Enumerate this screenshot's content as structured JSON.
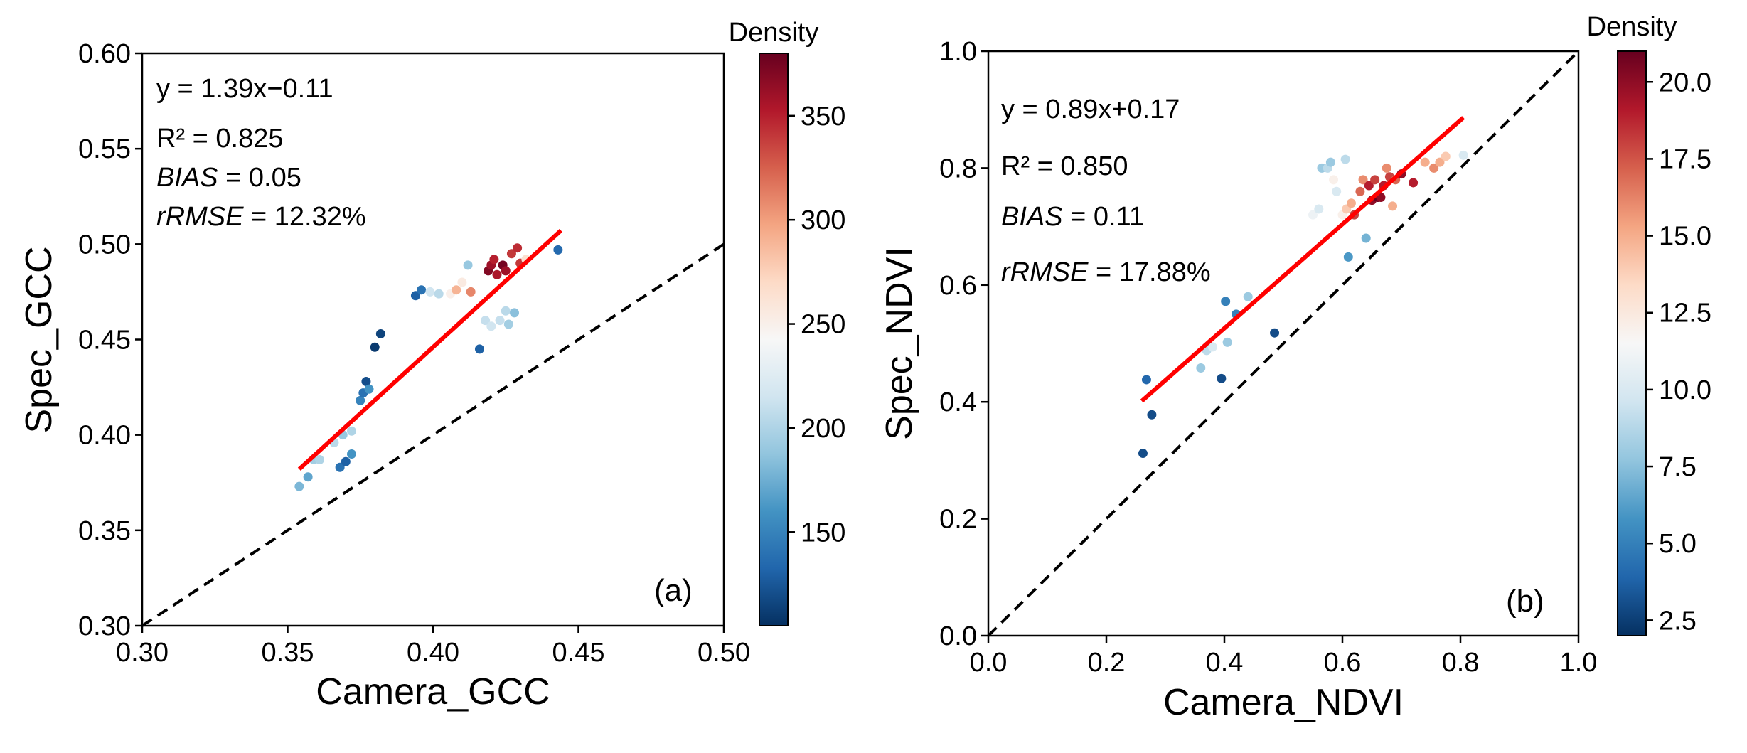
{
  "chart_data": [
    {
      "type": "scatter",
      "panel_label": "(a)",
      "xlabel": "Camera_GCC",
      "ylabel": "Spec_GCC",
      "xlim": [
        0.3,
        0.5
      ],
      "ylim": [
        0.3,
        0.6
      ],
      "xticks": [
        "0.30",
        "0.35",
        "0.40",
        "0.45",
        "0.50"
      ],
      "yticks": [
        "0.30",
        "0.35",
        "0.40",
        "0.45",
        "0.50",
        "0.55",
        "0.60"
      ],
      "equation": "y = 1.39x−0.11",
      "r2": "R² = 0.825",
      "bias_label": "BIAS",
      "bias_value": " = 0.05",
      "rrmse_label": "rRMSE",
      "rrmse_value": " = 12.32%",
      "fit_line": {
        "slope": 1.39,
        "intercept": -0.11,
        "x_range": [
          0.354,
          0.444
        ],
        "color": "#ff0000"
      },
      "identity_line": true,
      "colorbar": {
        "title": "Density",
        "min": 105,
        "max": 380,
        "ticks": [
          150,
          200,
          250,
          300,
          350
        ]
      },
      "points": [
        [
          0.354,
          0.373,
          180
        ],
        [
          0.357,
          0.378,
          170
        ],
        [
          0.359,
          0.387,
          195
        ],
        [
          0.361,
          0.387,
          200
        ],
        [
          0.366,
          0.396,
          205
        ],
        [
          0.368,
          0.383,
          140
        ],
        [
          0.369,
          0.4,
          190
        ],
        [
          0.37,
          0.386,
          130
        ],
        [
          0.372,
          0.39,
          160
        ],
        [
          0.372,
          0.402,
          200
        ],
        [
          0.375,
          0.418,
          150
        ],
        [
          0.376,
          0.422,
          140
        ],
        [
          0.377,
          0.428,
          120
        ],
        [
          0.378,
          0.424,
          160
        ],
        [
          0.38,
          0.446,
          110
        ],
        [
          0.382,
          0.453,
          115
        ],
        [
          0.394,
          0.473,
          130
        ],
        [
          0.396,
          0.476,
          140
        ],
        [
          0.399,
          0.475,
          215
        ],
        [
          0.402,
          0.474,
          205
        ],
        [
          0.406,
          0.474,
          250
        ],
        [
          0.408,
          0.476,
          290
        ],
        [
          0.41,
          0.48,
          255
        ],
        [
          0.412,
          0.489,
          190
        ],
        [
          0.413,
          0.475,
          310
        ],
        [
          0.416,
          0.445,
          130
        ],
        [
          0.418,
          0.46,
          210
        ],
        [
          0.419,
          0.486,
          370
        ],
        [
          0.42,
          0.457,
          215
        ],
        [
          0.42,
          0.489,
          360
        ],
        [
          0.421,
          0.492,
          350
        ],
        [
          0.422,
          0.484,
          355
        ],
        [
          0.423,
          0.46,
          210
        ],
        [
          0.424,
          0.489,
          375
        ],
        [
          0.425,
          0.465,
          205
        ],
        [
          0.425,
          0.486,
          360
        ],
        [
          0.426,
          0.458,
          195
        ],
        [
          0.427,
          0.495,
          340
        ],
        [
          0.428,
          0.464,
          185
        ],
        [
          0.429,
          0.498,
          345
        ],
        [
          0.43,
          0.49,
          340
        ],
        [
          0.432,
          0.492,
          265
        ],
        [
          0.443,
          0.497,
          135
        ]
      ]
    },
    {
      "type": "scatter",
      "panel_label": "(b)",
      "xlabel": "Camera_NDVI",
      "ylabel": "Spec_NDVI",
      "xlim": [
        0.0,
        1.0
      ],
      "ylim": [
        0.0,
        1.0
      ],
      "xticks": [
        "0.0",
        "0.2",
        "0.4",
        "0.6",
        "0.8",
        "1.0"
      ],
      "yticks": [
        "0.0",
        "0.2",
        "0.4",
        "0.6",
        "0.8",
        "1.0"
      ],
      "equation": "y = 0.89x+0.17",
      "r2": "R² = 0.850",
      "bias_label": "BIAS",
      "bias_value": " = 0.11",
      "rrmse_label": "rRMSE",
      "rrmse_value": " = 17.88%",
      "fit_line": {
        "slope": 0.89,
        "intercept": 0.17,
        "x_range": [
          0.26,
          0.805
        ],
        "color": "#ff0000"
      },
      "identity_line": true,
      "colorbar": {
        "title": "Density",
        "min": 2,
        "max": 21,
        "ticks": [
          2.5,
          5.0,
          7.5,
          10.0,
          12.5,
          15.0,
          17.5,
          20.0
        ]
      },
      "points": [
        [
          0.262,
          0.312,
          3
        ],
        [
          0.268,
          0.438,
          4
        ],
        [
          0.277,
          0.378,
          3
        ],
        [
          0.36,
          0.458,
          8
        ],
        [
          0.37,
          0.488,
          9
        ],
        [
          0.38,
          0.494,
          10
        ],
        [
          0.395,
          0.44,
          3
        ],
        [
          0.402,
          0.572,
          5
        ],
        [
          0.405,
          0.502,
          8
        ],
        [
          0.42,
          0.55,
          5
        ],
        [
          0.44,
          0.58,
          8
        ],
        [
          0.485,
          0.518,
          3
        ],
        [
          0.55,
          0.72,
          11
        ],
        [
          0.56,
          0.73,
          10
        ],
        [
          0.565,
          0.8,
          8
        ],
        [
          0.575,
          0.8,
          9
        ],
        [
          0.58,
          0.81,
          8
        ],
        [
          0.585,
          0.78,
          12
        ],
        [
          0.59,
          0.76,
          10
        ],
        [
          0.6,
          0.72,
          12
        ],
        [
          0.605,
          0.815,
          9
        ],
        [
          0.607,
          0.73,
          14
        ],
        [
          0.61,
          0.648,
          6
        ],
        [
          0.615,
          0.74,
          15
        ],
        [
          0.62,
          0.72,
          18
        ],
        [
          0.63,
          0.76,
          17
        ],
        [
          0.635,
          0.78,
          16
        ],
        [
          0.64,
          0.68,
          7
        ],
        [
          0.645,
          0.77,
          19
        ],
        [
          0.65,
          0.745,
          20
        ],
        [
          0.655,
          0.78,
          18
        ],
        [
          0.66,
          0.75,
          21
        ],
        [
          0.665,
          0.75,
          20
        ],
        [
          0.67,
          0.77,
          19
        ],
        [
          0.675,
          0.8,
          16
        ],
        [
          0.68,
          0.785,
          18
        ],
        [
          0.685,
          0.735,
          15
        ],
        [
          0.69,
          0.78,
          17
        ],
        [
          0.7,
          0.79,
          20
        ],
        [
          0.72,
          0.775,
          19
        ],
        [
          0.74,
          0.81,
          15
        ],
        [
          0.755,
          0.8,
          16
        ],
        [
          0.765,
          0.81,
          15
        ],
        [
          0.775,
          0.82,
          14
        ],
        [
          0.805,
          0.822,
          10
        ]
      ]
    }
  ]
}
